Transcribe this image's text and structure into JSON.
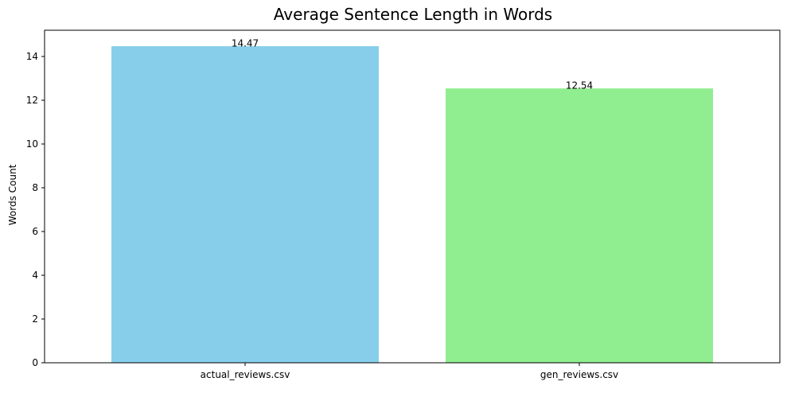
{
  "chart_data": {
    "type": "bar",
    "title": "Average Sentence Length in Words",
    "xlabel": "",
    "ylabel": "Words Count",
    "categories": [
      "actual_reviews.csv",
      "gen_reviews.csv"
    ],
    "values": [
      14.47,
      12.54
    ],
    "value_labels": [
      "14.47",
      "12.54"
    ],
    "colors": [
      "#87ceeb",
      "#90ee90"
    ],
    "ylim": [
      0,
      15.2
    ],
    "yticks": [
      0,
      2,
      4,
      6,
      8,
      10,
      12,
      14
    ],
    "grid": false,
    "legend": "none"
  }
}
